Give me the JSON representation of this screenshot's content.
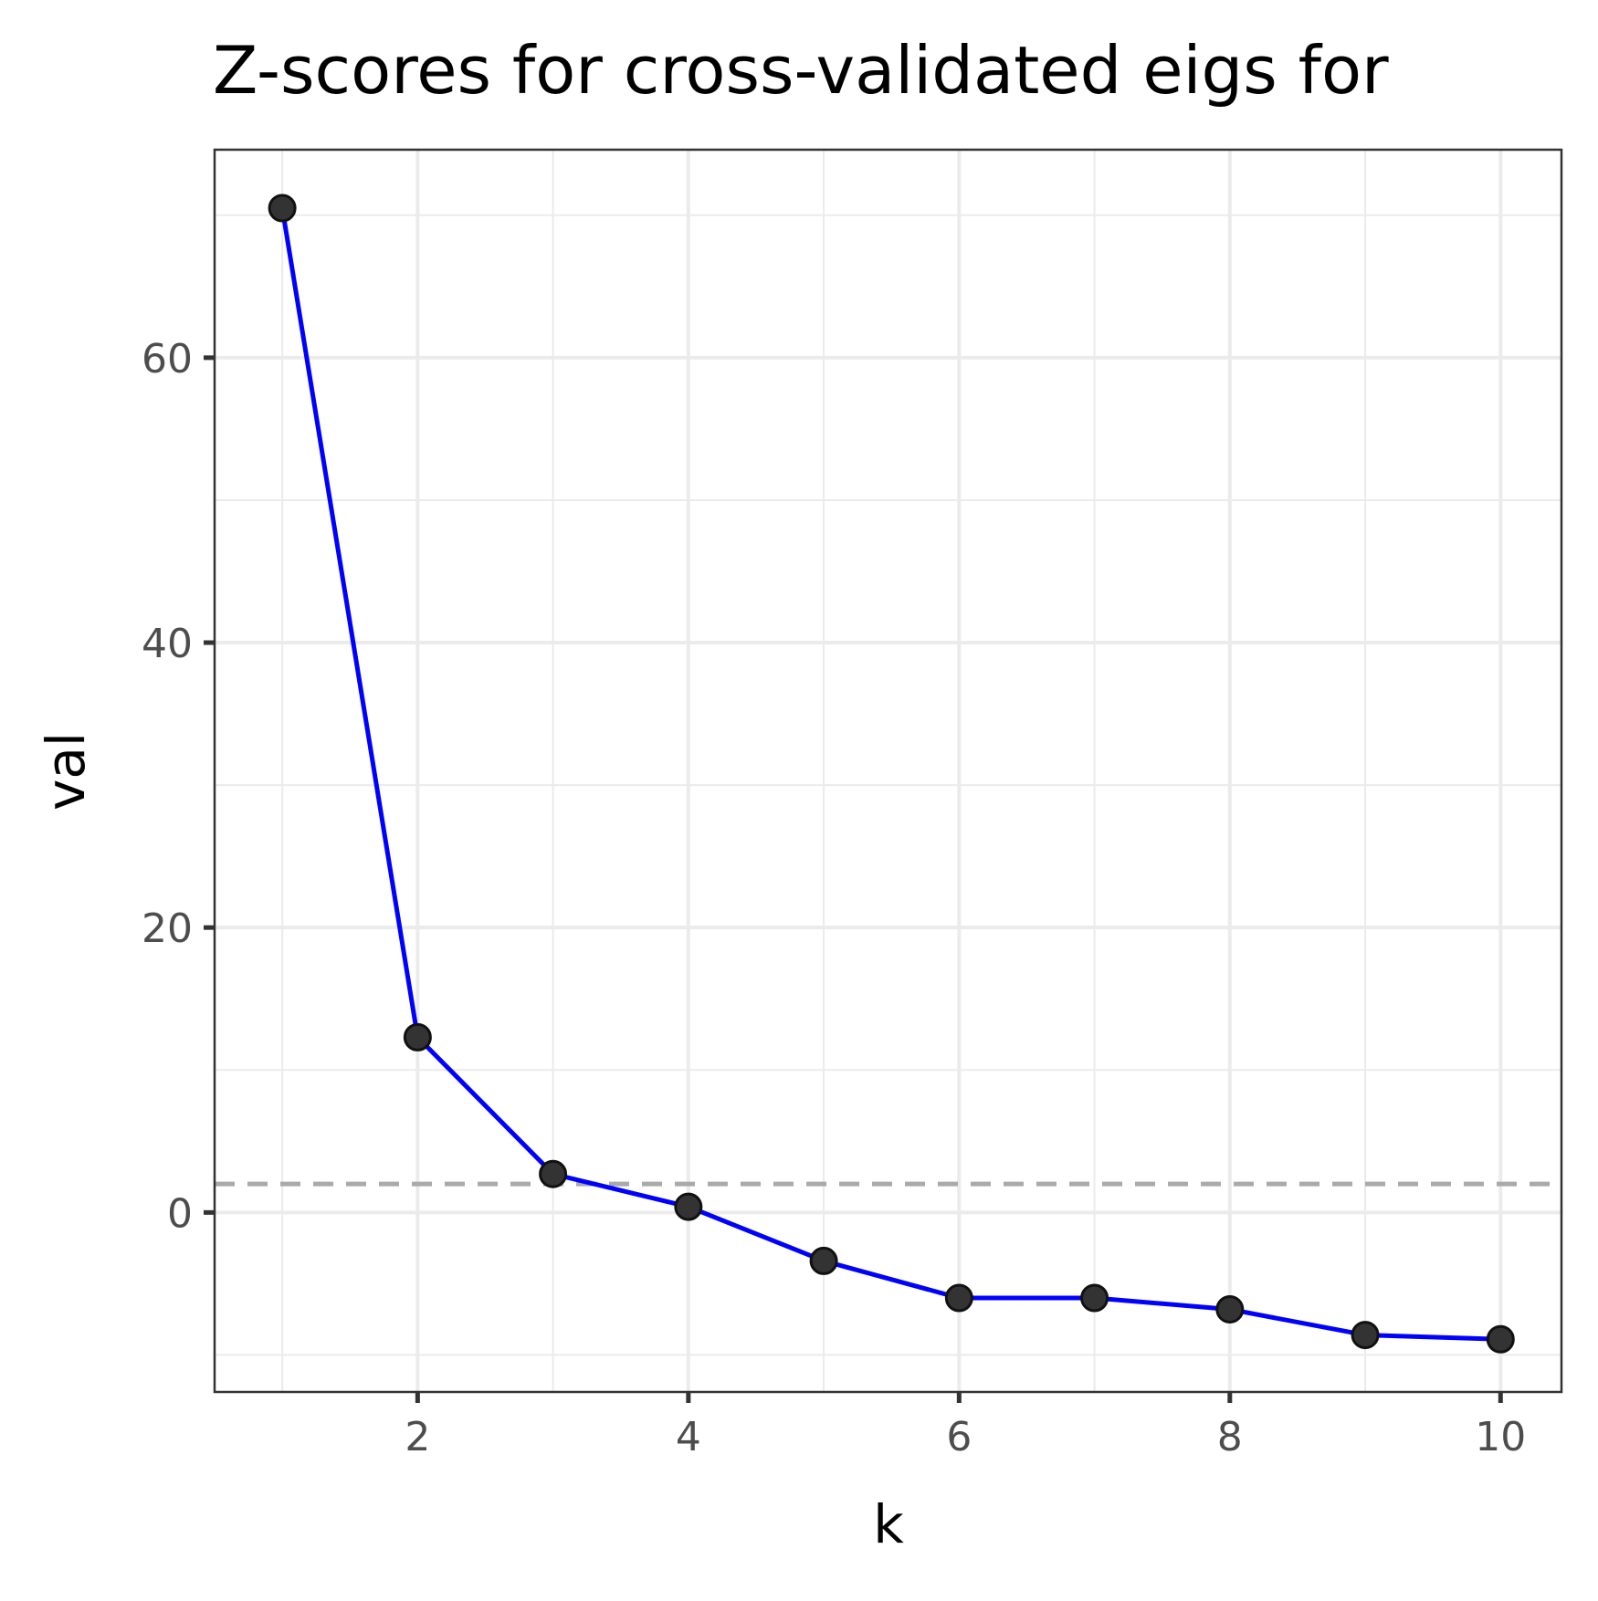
{
  "chart_data": {
    "type": "line",
    "title": "Z-scores for cross-validated eigs for",
    "xlabel": "k",
    "ylabel": "val",
    "x": [
      1,
      2,
      3,
      4,
      5,
      6,
      7,
      8,
      9,
      10
    ],
    "series": [
      {
        "values": [
          70.5,
          12.3,
          2.7,
          0.4,
          -3.4,
          -6.0,
          -6.0,
          -6.8,
          -8.6,
          -8.9
        ]
      }
    ],
    "xlim": [
      0.5,
      10.45
    ],
    "ylim": [
      -12.6,
      74.6
    ],
    "x_ticks": [
      2,
      4,
      6,
      8,
      10
    ],
    "y_ticks": [
      0,
      20,
      40,
      60
    ],
    "x_tick_labels": [
      "2",
      "4",
      "6",
      "8",
      "10"
    ],
    "y_tick_labels": [
      "0",
      "20",
      "40",
      "60"
    ],
    "reference_line": {
      "y": 2,
      "style": "dashed",
      "color": "#aaaaaa"
    },
    "line_color": "#0000ff",
    "point_color": "#333333",
    "grid": true,
    "legend": "none"
  }
}
